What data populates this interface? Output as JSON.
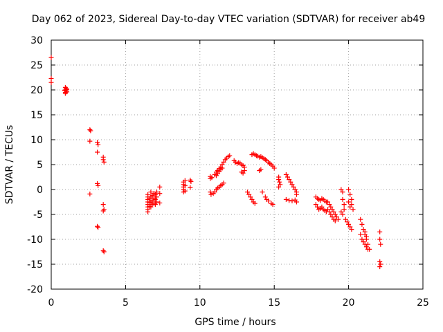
{
  "chart_data": {
    "type": "scatter",
    "title": "Day 062 of 2023, Sidereal Day-to-day VTEC variation (SDTVAR) for receiver ab49",
    "xlabel": "GPS time / hours",
    "ylabel": "SDTVAR / TECUs",
    "xlim": [
      0,
      25
    ],
    "ylim": [
      -20,
      30
    ],
    "xticks": [
      0,
      5,
      10,
      15,
      20,
      25
    ],
    "yticks": [
      -20,
      -15,
      -10,
      -5,
      0,
      5,
      10,
      15,
      20,
      25,
      30
    ],
    "xtick_labels": [
      "0",
      "5",
      "10",
      "15",
      "20",
      "25"
    ],
    "ytick_labels": [
      "-20",
      "-15",
      "-10",
      "-5",
      "0",
      "5",
      "10",
      "15",
      "20",
      "25",
      "30"
    ],
    "grid": true,
    "marker": "+",
    "color": "#ff0000",
    "series": [
      {
        "name": "SDTVAR",
        "points": [
          [
            0.0,
            26.5
          ],
          [
            0.0,
            22.3
          ],
          [
            0.0,
            21.5
          ],
          [
            0.95,
            20.5
          ],
          [
            0.95,
            20.0
          ],
          [
            0.95,
            19.5
          ],
          [
            1.0,
            20.3
          ],
          [
            1.0,
            19.8
          ],
          [
            1.05,
            20.1
          ],
          [
            0.9,
            19.9
          ],
          [
            1.05,
            19.6
          ],
          [
            0.95,
            19.3
          ],
          [
            2.6,
            12.0
          ],
          [
            2.65,
            11.8
          ],
          [
            2.6,
            9.7
          ],
          [
            2.6,
            -0.9
          ],
          [
            3.1,
            9.5
          ],
          [
            3.15,
            9.0
          ],
          [
            3.1,
            7.5
          ],
          [
            3.1,
            1.2
          ],
          [
            3.15,
            0.8
          ],
          [
            3.1,
            -7.4
          ],
          [
            3.15,
            -7.6
          ],
          [
            3.5,
            6.5
          ],
          [
            3.5,
            6.0
          ],
          [
            3.55,
            5.5
          ],
          [
            3.5,
            -3.0
          ],
          [
            3.5,
            -4.3
          ],
          [
            3.55,
            -4.0
          ],
          [
            3.5,
            -12.3
          ],
          [
            3.55,
            -12.5
          ],
          [
            6.5,
            -1.0
          ],
          [
            6.5,
            -1.5
          ],
          [
            6.5,
            -2.0
          ],
          [
            6.5,
            -2.5
          ],
          [
            6.5,
            -3.0
          ],
          [
            6.5,
            -3.5
          ],
          [
            6.5,
            -4.0
          ],
          [
            6.5,
            -4.5
          ],
          [
            6.6,
            -1.8
          ],
          [
            6.6,
            -2.6
          ],
          [
            6.6,
            -3.4
          ],
          [
            6.7,
            -0.5
          ],
          [
            6.7,
            -1.5
          ],
          [
            6.7,
            -2.5
          ],
          [
            6.7,
            -3.5
          ],
          [
            6.8,
            -1.2
          ],
          [
            6.8,
            -2.2
          ],
          [
            6.8,
            -3.0
          ],
          [
            6.9,
            -0.8
          ],
          [
            6.9,
            -1.8
          ],
          [
            6.9,
            -2.8
          ],
          [
            7.0,
            -1.0
          ],
          [
            7.0,
            -2.0
          ],
          [
            7.0,
            -3.0
          ],
          [
            7.1,
            -0.5
          ],
          [
            7.1,
            -1.5
          ],
          [
            7.1,
            -2.5
          ],
          [
            7.3,
            0.5
          ],
          [
            7.3,
            -0.8
          ],
          [
            7.3,
            -2.7
          ],
          [
            8.9,
            1.5
          ],
          [
            8.9,
            1.0
          ],
          [
            8.9,
            0.5
          ],
          [
            8.9,
            0.0
          ],
          [
            8.9,
            -0.5
          ],
          [
            9.0,
            1.8
          ],
          [
            9.0,
            0.8
          ],
          [
            9.0,
            -0.3
          ],
          [
            9.35,
            1.9
          ],
          [
            9.4,
            1.6
          ],
          [
            9.35,
            0.4
          ],
          [
            10.7,
            2.2
          ],
          [
            10.7,
            2.6
          ],
          [
            10.8,
            2.4
          ],
          [
            10.7,
            -0.5
          ],
          [
            10.75,
            -1.0
          ],
          [
            10.9,
            -0.8
          ],
          [
            11.0,
            -0.5
          ],
          [
            11.1,
            0.0
          ],
          [
            11.2,
            0.3
          ],
          [
            11.3,
            0.5
          ],
          [
            11.4,
            0.8
          ],
          [
            11.5,
            1.0
          ],
          [
            11.6,
            1.3
          ],
          [
            11.0,
            3.0
          ],
          [
            11.1,
            3.5
          ],
          [
            11.2,
            3.8
          ],
          [
            11.3,
            4.2
          ],
          [
            11.4,
            4.5
          ],
          [
            11.5,
            5.0
          ],
          [
            11.6,
            5.5
          ],
          [
            11.7,
            6.0
          ],
          [
            11.8,
            6.3
          ],
          [
            11.9,
            6.6
          ],
          [
            12.0,
            6.8
          ],
          [
            11.1,
            2.8
          ],
          [
            11.2,
            3.2
          ],
          [
            11.3,
            3.6
          ],
          [
            11.4,
            4.0
          ],
          [
            11.5,
            4.3
          ],
          [
            12.3,
            5.8
          ],
          [
            12.4,
            5.5
          ],
          [
            12.5,
            5.2
          ],
          [
            12.6,
            5.4
          ],
          [
            12.7,
            5.3
          ],
          [
            12.8,
            5.0
          ],
          [
            12.9,
            4.8
          ],
          [
            13.0,
            4.5
          ],
          [
            12.8,
            3.5
          ],
          [
            12.9,
            3.3
          ],
          [
            13.0,
            3.8
          ],
          [
            13.2,
            -0.5
          ],
          [
            13.3,
            -1.0
          ],
          [
            13.4,
            -1.5
          ],
          [
            13.5,
            -2.0
          ],
          [
            13.6,
            -2.5
          ],
          [
            13.7,
            -2.8
          ],
          [
            13.5,
            7.0
          ],
          [
            13.6,
            7.2
          ],
          [
            13.7,
            7.0
          ],
          [
            13.8,
            6.8
          ],
          [
            13.9,
            6.7
          ],
          [
            14.0,
            6.5
          ],
          [
            14.1,
            6.6
          ],
          [
            14.2,
            6.4
          ],
          [
            14.3,
            6.2
          ],
          [
            14.4,
            6.0
          ],
          [
            14.5,
            5.8
          ],
          [
            14.6,
            5.5
          ],
          [
            14.7,
            5.2
          ],
          [
            14.8,
            5.0
          ],
          [
            14.9,
            4.7
          ],
          [
            15.0,
            4.3
          ],
          [
            14.0,
            3.8
          ],
          [
            14.1,
            4.0
          ],
          [
            14.2,
            -0.5
          ],
          [
            14.4,
            -1.5
          ],
          [
            14.5,
            -2.0
          ],
          [
            14.6,
            -2.3
          ],
          [
            14.8,
            -2.8
          ],
          [
            14.9,
            -3.0
          ],
          [
            15.3,
            2.5
          ],
          [
            15.3,
            2.0
          ],
          [
            15.35,
            1.5
          ],
          [
            15.4,
            1.0
          ],
          [
            15.3,
            0.5
          ],
          [
            15.8,
            3.0
          ],
          [
            15.9,
            2.5
          ],
          [
            16.0,
            2.0
          ],
          [
            16.1,
            1.5
          ],
          [
            16.2,
            1.0
          ],
          [
            16.3,
            0.5
          ],
          [
            16.4,
            0.0
          ],
          [
            16.5,
            -0.5
          ],
          [
            16.5,
            -1.0
          ],
          [
            15.8,
            -2.0
          ],
          [
            16.0,
            -2.2
          ],
          [
            16.2,
            -2.3
          ],
          [
            16.4,
            -2.1
          ],
          [
            16.5,
            -2.5
          ],
          [
            17.8,
            -1.5
          ],
          [
            17.9,
            -1.8
          ],
          [
            18.0,
            -2.0
          ],
          [
            18.1,
            -2.2
          ],
          [
            18.2,
            -1.8
          ],
          [
            18.3,
            -2.0
          ],
          [
            18.4,
            -2.3
          ],
          [
            18.5,
            -2.5
          ],
          [
            17.8,
            -3.0
          ],
          [
            17.9,
            -3.5
          ],
          [
            18.0,
            -4.0
          ],
          [
            18.1,
            -3.8
          ],
          [
            18.2,
            -3.5
          ],
          [
            18.3,
            -4.0
          ],
          [
            18.4,
            -4.2
          ],
          [
            18.5,
            -4.5
          ],
          [
            18.6,
            -2.5
          ],
          [
            18.7,
            -3.0
          ],
          [
            18.8,
            -3.5
          ],
          [
            18.9,
            -4.0
          ],
          [
            19.0,
            -4.5
          ],
          [
            19.1,
            -5.0
          ],
          [
            19.2,
            -5.5
          ],
          [
            19.3,
            -6.0
          ],
          [
            18.6,
            -4.0
          ],
          [
            18.7,
            -4.5
          ],
          [
            18.8,
            -5.0
          ],
          [
            18.9,
            -5.5
          ],
          [
            19.0,
            -6.0
          ],
          [
            19.1,
            -6.3
          ],
          [
            19.5,
            0.0
          ],
          [
            19.6,
            -0.5
          ],
          [
            19.6,
            -2.0
          ],
          [
            19.7,
            -3.0
          ],
          [
            19.5,
            -4.5
          ],
          [
            19.6,
            -5.0
          ],
          [
            19.7,
            -4.0
          ],
          [
            19.8,
            -6.0
          ],
          [
            19.9,
            -6.5
          ],
          [
            20.0,
            -7.0
          ],
          [
            20.1,
            -7.5
          ],
          [
            20.2,
            -8.0
          ],
          [
            20.0,
            0.0
          ],
          [
            20.1,
            -1.0
          ],
          [
            20.2,
            -2.0
          ],
          [
            20.2,
            -3.0
          ],
          [
            20.3,
            -4.0
          ],
          [
            20.0,
            -2.5
          ],
          [
            20.1,
            -3.5
          ],
          [
            20.8,
            -6.0
          ],
          [
            20.9,
            -7.0
          ],
          [
            21.0,
            -8.0
          ],
          [
            21.1,
            -9.0
          ],
          [
            21.2,
            -10.0
          ],
          [
            21.3,
            -11.0
          ],
          [
            21.4,
            -12.0
          ],
          [
            20.8,
            -9.0
          ],
          [
            20.9,
            -10.0
          ],
          [
            21.0,
            -10.5
          ],
          [
            21.1,
            -11.0
          ],
          [
            21.2,
            -11.5
          ],
          [
            21.3,
            -12.0
          ],
          [
            21.1,
            -8.5
          ],
          [
            21.2,
            -9.5
          ],
          [
            22.1,
            -8.5
          ],
          [
            22.1,
            -10.0
          ],
          [
            22.15,
            -11.0
          ],
          [
            22.1,
            -14.5
          ],
          [
            22.15,
            -15.0
          ],
          [
            22.1,
            -15.5
          ]
        ]
      }
    ]
  }
}
